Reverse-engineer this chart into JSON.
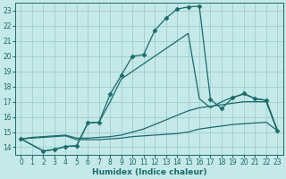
{
  "xlabel": "Humidex (Indice chaleur)",
  "background_color": "#c5e8e8",
  "grid_color": "#9fcece",
  "line_color": "#1a6b6b",
  "xlim": [
    -0.5,
    23.5
  ],
  "ylim": [
    13.5,
    23.5
  ],
  "yticks": [
    14,
    15,
    16,
    17,
    18,
    19,
    20,
    21,
    22,
    23
  ],
  "xticks": [
    0,
    1,
    2,
    3,
    4,
    5,
    6,
    7,
    8,
    9,
    10,
    11,
    12,
    13,
    14,
    15,
    16,
    17,
    18,
    19,
    20,
    21,
    22,
    23
  ],
  "series": [
    {
      "x": [
        0,
        1,
        2,
        3,
        4,
        5,
        6,
        7,
        8,
        9,
        10,
        11,
        12,
        13,
        14,
        15,
        16,
        17,
        18,
        19,
        20,
        21,
        22,
        23
      ],
      "y": [
        14.55,
        14.6,
        14.65,
        14.7,
        14.75,
        14.5,
        14.5,
        14.5,
        14.55,
        14.6,
        14.7,
        14.75,
        14.8,
        14.85,
        14.9,
        15.0,
        15.2,
        15.3,
        15.4,
        15.5,
        15.55,
        15.6,
        15.65,
        15.1
      ],
      "marker": false
    },
    {
      "x": [
        0,
        1,
        2,
        3,
        4,
        5,
        6,
        7,
        8,
        9,
        10,
        11,
        12,
        13,
        14,
        15,
        16,
        17,
        18,
        19,
        20,
        21,
        22,
        23
      ],
      "y": [
        14.55,
        14.65,
        14.7,
        14.75,
        14.8,
        14.6,
        14.6,
        14.65,
        14.7,
        14.8,
        15.0,
        15.2,
        15.5,
        15.8,
        16.1,
        16.4,
        16.6,
        16.7,
        16.8,
        16.9,
        17.0,
        17.0,
        17.0,
        15.1
      ],
      "marker": false
    },
    {
      "x": [
        0,
        2,
        3,
        4,
        5,
        6,
        7,
        8,
        9,
        10,
        11,
        12,
        13,
        14,
        15,
        16,
        17,
        18,
        19,
        20,
        21,
        22,
        23
      ],
      "y": [
        14.55,
        13.75,
        13.85,
        14.05,
        14.1,
        15.6,
        15.65,
        17.0,
        18.5,
        19.0,
        19.5,
        20.0,
        20.5,
        21.0,
        21.5,
        17.2,
        16.6,
        17.0,
        17.3,
        17.5,
        17.2,
        17.1,
        15.1
      ],
      "marker": false
    },
    {
      "x": [
        0,
        2,
        3,
        4,
        5,
        6,
        7,
        8,
        9,
        10,
        11,
        12,
        13,
        14,
        15,
        16,
        17,
        18,
        19,
        20,
        21,
        22,
        23
      ],
      "y": [
        14.55,
        13.75,
        13.85,
        14.05,
        14.1,
        15.6,
        15.65,
        17.5,
        18.75,
        20.0,
        20.1,
        21.7,
        22.5,
        23.1,
        23.25,
        23.3,
        17.15,
        16.55,
        17.25,
        17.55,
        17.2,
        17.1,
        15.1
      ],
      "marker": true
    }
  ]
}
